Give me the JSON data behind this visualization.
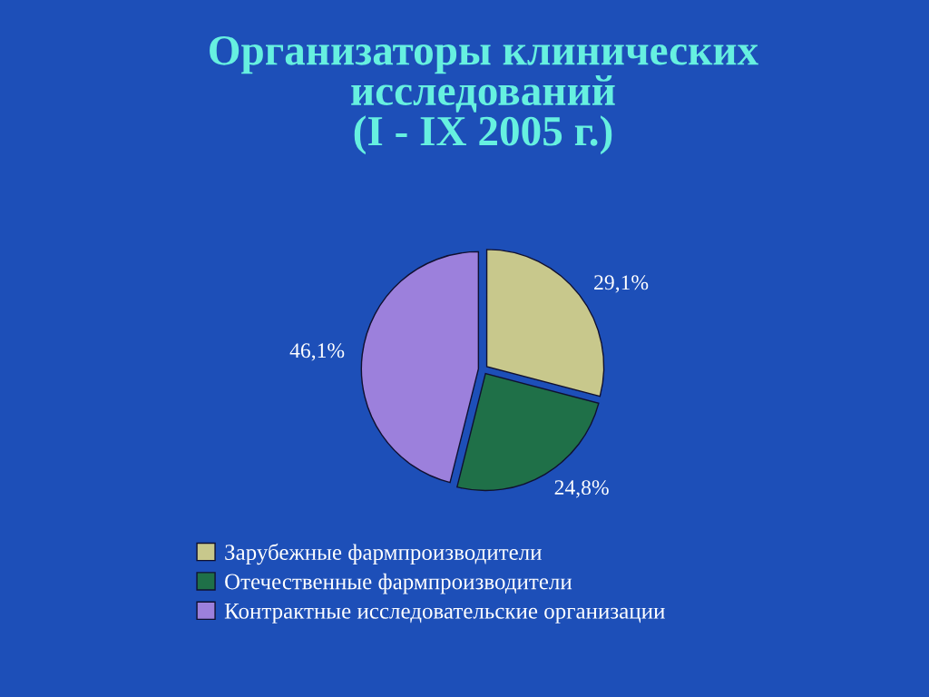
{
  "chart_data": {
    "type": "pie",
    "title": "Организаторы клинических\nисследований\n(I - IX 2005 г.)",
    "categories": [
      "Зарубежные фармпроизводители",
      "Отечественные фармпроизводители",
      "Контрактные исследовательские организации"
    ],
    "values": [
      29.1,
      24.8,
      46.1
    ],
    "value_labels": [
      "29,1%",
      "24,8%",
      "46,1%"
    ],
    "colors": [
      "#c8c88c",
      "#1f7048",
      "#9c80dc"
    ],
    "legend": "bottom"
  }
}
